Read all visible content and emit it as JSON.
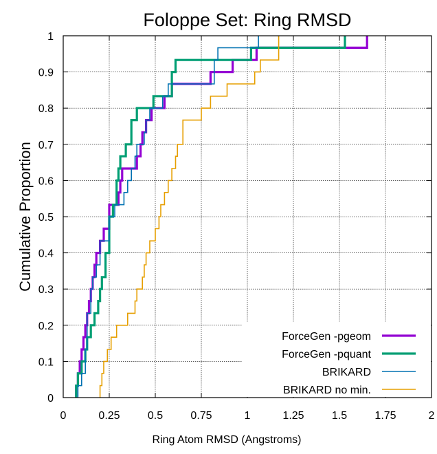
{
  "chart_data": {
    "type": "line",
    "step": true,
    "title": "Foloppe Set: Ring RMSD",
    "xlabel": "Ring Atom RMSD (Angstroms)",
    "ylabel": "Cumulative Proportion",
    "xlim": [
      0,
      2
    ],
    "ylim": [
      0,
      1
    ],
    "xticks": [
      0,
      0.25,
      0.5,
      0.75,
      1,
      1.25,
      1.5,
      1.75,
      2
    ],
    "xtick_labels": [
      "0",
      "0.25",
      "0.5",
      "0.75",
      "1",
      "1.25",
      "1.5",
      "1.75",
      "2"
    ],
    "yticks": [
      0,
      0.1,
      0.2,
      0.3,
      0.4,
      0.5,
      0.6,
      0.7,
      0.8,
      0.9,
      1
    ],
    "ytick_labels": [
      "0",
      "0.1",
      "0.2",
      "0.3",
      "0.4",
      "0.5",
      "0.6",
      "0.7",
      "0.8",
      "0.9",
      "1"
    ],
    "grid": true,
    "legend_position": "bottom-right",
    "series": [
      {
        "name": "ForceGen -pgeom",
        "color": "#9400d3",
        "width": "thick",
        "x": [
          0.07,
          0.08,
          0.09,
          0.1,
          0.11,
          0.12,
          0.13,
          0.14,
          0.15,
          0.16,
          0.17,
          0.18,
          0.2,
          0.22,
          0.25,
          0.29,
          0.3,
          0.31,
          0.32,
          0.4,
          0.42,
          0.43,
          0.45,
          0.48,
          0.5,
          0.52,
          0.55,
          0.57,
          0.59,
          0.6,
          0.74,
          0.8,
          0.86,
          0.92,
          1.05,
          1.64,
          1.65
        ],
        "y": [
          0.033,
          0.067,
          0.1,
          0.133,
          0.167,
          0.2,
          0.233,
          0.267,
          0.3,
          0.333,
          0.367,
          0.4,
          0.433,
          0.467,
          0.533,
          0.533,
          0.567,
          0.6,
          0.633,
          0.667,
          0.7,
          0.733,
          0.767,
          0.8,
          0.8,
          0.8,
          0.833,
          0.833,
          0.867,
          0.867,
          0.867,
          0.9,
          0.9,
          0.933,
          0.967,
          0.967,
          1.0
        ]
      },
      {
        "name": "ForceGen -pquant",
        "color": "#009e73",
        "width": "thick",
        "x": [
          0.07,
          0.08,
          0.1,
          0.12,
          0.13,
          0.15,
          0.17,
          0.19,
          0.2,
          0.21,
          0.23,
          0.25,
          0.27,
          0.29,
          0.3,
          0.31,
          0.34,
          0.37,
          0.4,
          0.46,
          0.49,
          0.5,
          0.59,
          0.61,
          0.75,
          0.98,
          1.02,
          1.52,
          1.53
        ],
        "y": [
          0.033,
          0.067,
          0.1,
          0.133,
          0.167,
          0.2,
          0.233,
          0.267,
          0.3,
          0.333,
          0.4,
          0.5,
          0.533,
          0.6,
          0.633,
          0.667,
          0.7,
          0.767,
          0.8,
          0.8,
          0.833,
          0.833,
          0.9,
          0.933,
          0.933,
          0.933,
          0.967,
          0.967,
          1.0
        ]
      },
      {
        "name": "BRIKARD",
        "color": "#0072b2",
        "width": "thin",
        "x": [
          0.08,
          0.1,
          0.12,
          0.13,
          0.15,
          0.16,
          0.18,
          0.2,
          0.25,
          0.28,
          0.33,
          0.35,
          0.37,
          0.39,
          0.4,
          0.42,
          0.44,
          0.45,
          0.47,
          0.5,
          0.52,
          0.54,
          0.55,
          0.57,
          0.6,
          0.6,
          0.76,
          0.82,
          0.84,
          0.88,
          1.02,
          1.06
        ],
        "y": [
          0.033,
          0.067,
          0.133,
          0.233,
          0.3,
          0.333,
          0.367,
          0.433,
          0.5,
          0.533,
          0.567,
          0.6,
          0.633,
          0.667,
          0.7,
          0.7,
          0.733,
          0.767,
          0.8,
          0.8,
          0.8,
          0.833,
          0.833,
          0.867,
          0.867,
          0.867,
          0.867,
          0.933,
          0.967,
          0.967,
          0.967,
          1.0
        ]
      },
      {
        "name": "BRIKARD no min.",
        "color": "#e69f00",
        "width": "thin",
        "x": [
          0.2,
          0.21,
          0.22,
          0.24,
          0.26,
          0.28,
          0.29,
          0.3,
          0.35,
          0.39,
          0.4,
          0.43,
          0.44,
          0.45,
          0.47,
          0.5,
          0.52,
          0.53,
          0.55,
          0.57,
          0.59,
          0.61,
          0.62,
          0.65,
          0.71,
          0.75,
          0.8,
          0.87,
          0.89,
          1.04,
          1.07,
          1.17
        ],
        "y": [
          0.033,
          0.067,
          0.1,
          0.133,
          0.167,
          0.167,
          0.2,
          0.2,
          0.233,
          0.267,
          0.3,
          0.333,
          0.367,
          0.4,
          0.433,
          0.467,
          0.5,
          0.533,
          0.567,
          0.6,
          0.633,
          0.667,
          0.7,
          0.767,
          0.767,
          0.8,
          0.833,
          0.833,
          0.867,
          0.9,
          0.933,
          1.0
        ]
      }
    ]
  }
}
